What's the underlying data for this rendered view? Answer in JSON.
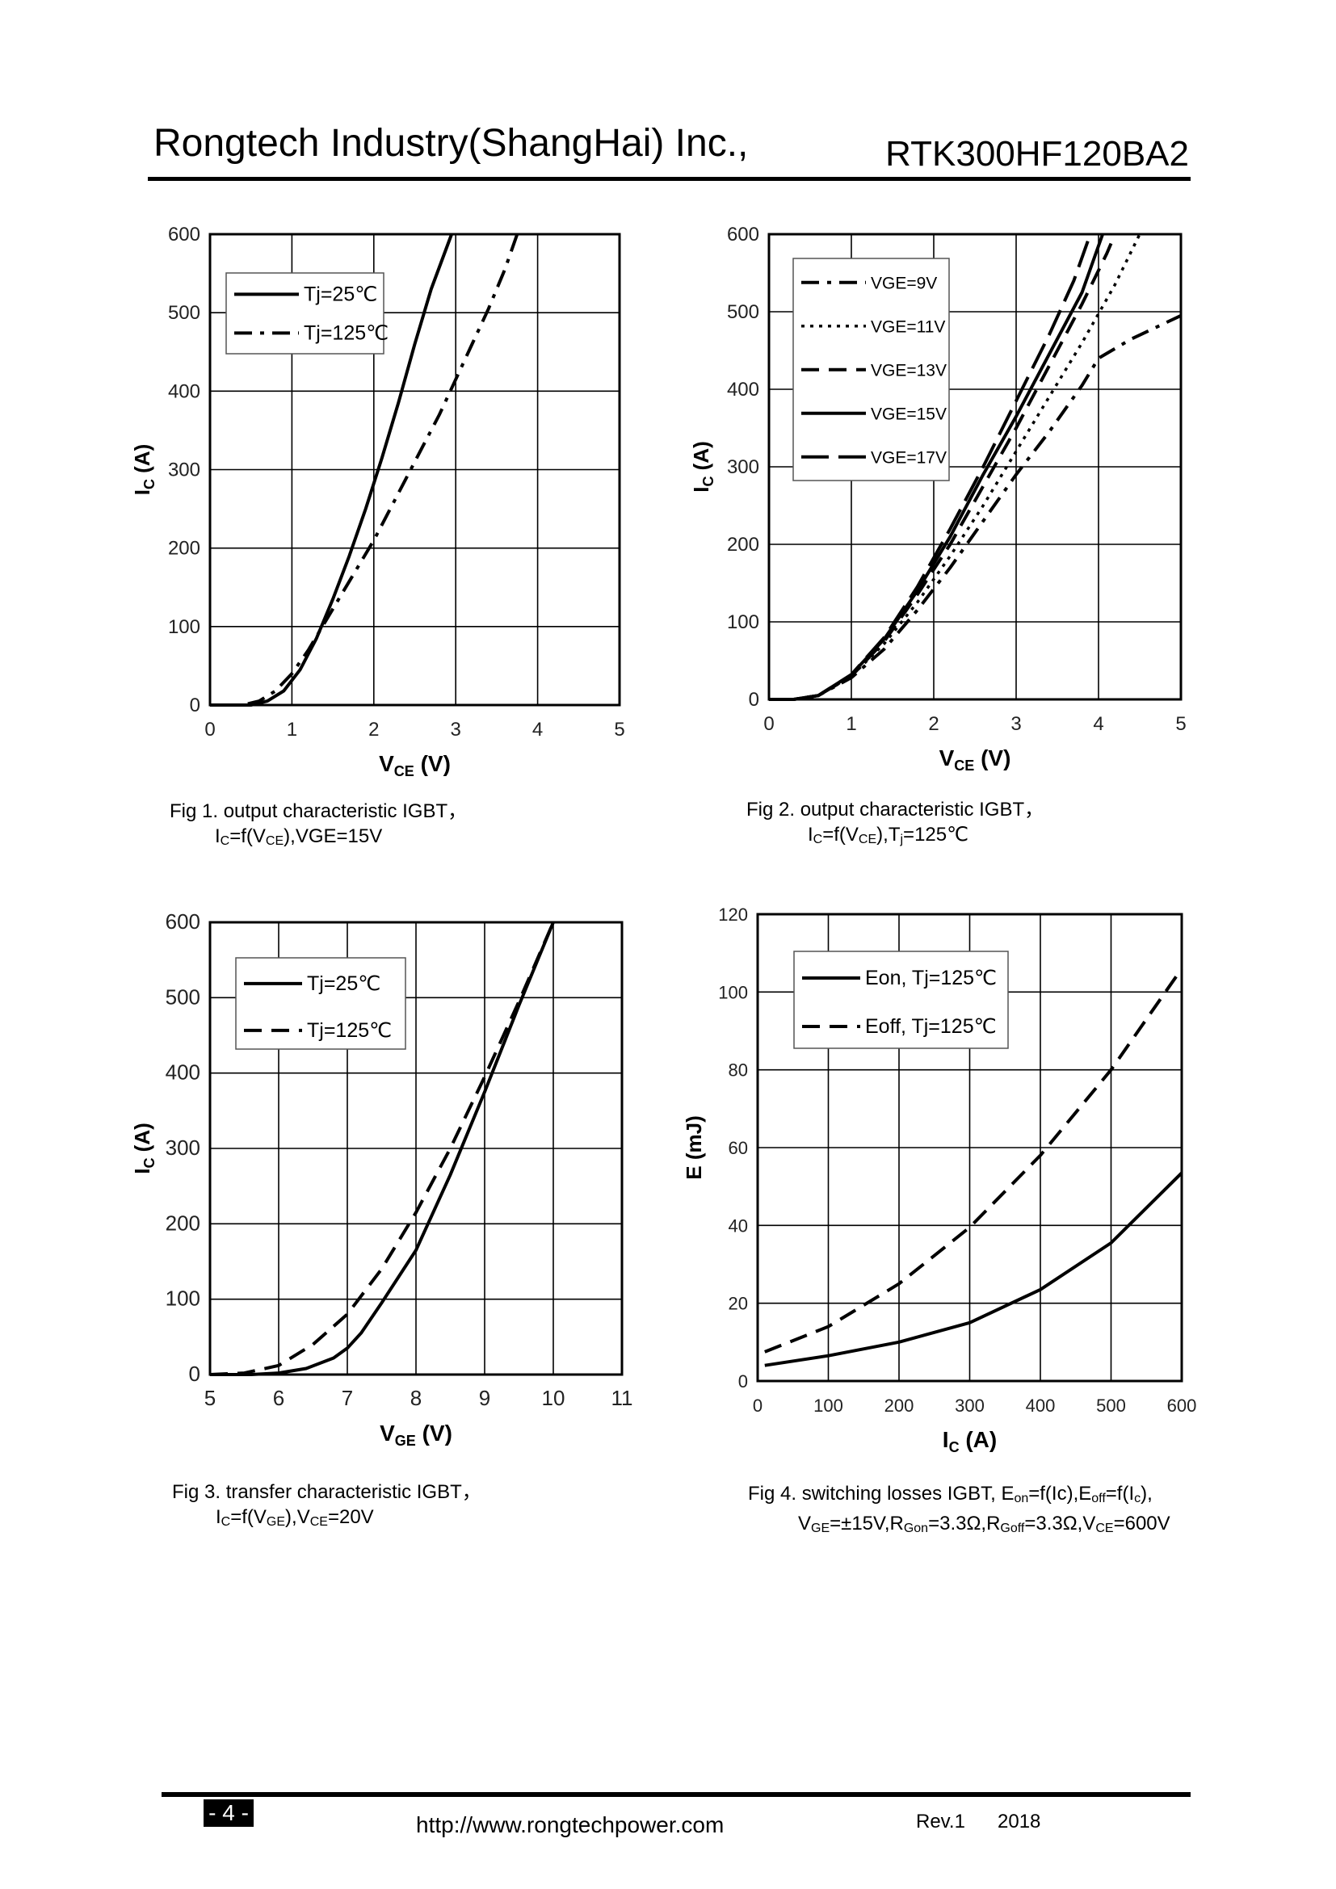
{
  "header": {
    "company": "Rongtech Industry(ShangHai) Inc.,",
    "part_number": "RTK300HF120BA2"
  },
  "captions": {
    "fig1": {
      "line1": "Fig 1. output characteristic IGBT，",
      "ic_sym": "I",
      "ic_sub": "C",
      "eq": "=f(V",
      "vce_sub": "CE",
      "rest": "),VGE=15V"
    },
    "fig2": {
      "line1": "Fig 2. output characteristic IGBT，",
      "ic_sym": "I",
      "ic_sub": "C",
      "eq": "=f(V",
      "vce_sub": "CE",
      "rest": "),T",
      "tj_sub": "j",
      "rest2": "=125℃"
    },
    "fig3": {
      "line1": "Fig 3. transfer characteristic IGBT，",
      "ic_sym": "I",
      "ic_sub": "C",
      "eq": "=f(V",
      "vge_sub": "GE",
      "rest": "),V",
      "vce_sub": "CE",
      "rest2": "=20V"
    },
    "fig4": {
      "l1a": "Fig 4. switching losses IGBT, E",
      "l1s1": "on",
      "l1b": "=f(Ic),E",
      "l1s2": "off",
      "l1c": "=f(I",
      "l1s3": "c",
      "l1d": "),",
      "l2a": "V",
      "l2s1": "GE",
      "l2b": "=±15V,R",
      "l2s2": "Gon",
      "l2c": "=3.3Ω,R",
      "l2s3": "Goff",
      "l2d": "=3.3Ω,V",
      "l2s4": "CE",
      "l2e": "=600V"
    }
  },
  "footer": {
    "page": "- 4 -",
    "url": "http://www.rongtechpower.com",
    "rev": "Rev.1",
    "year": "2018"
  },
  "chart_data": [
    {
      "id": "fig1",
      "type": "line",
      "title": "",
      "xlabel": "V",
      "xlabel_sub": "CE",
      "xlabel_unit": " (V)",
      "ylabel": "I",
      "ylabel_sub": "C",
      "ylabel_unit": " (A)",
      "xlim": [
        0,
        5
      ],
      "ylim": [
        0,
        600
      ],
      "xticks": [
        "0",
        "1",
        "2",
        "3",
        "4",
        "5"
      ],
      "yticks": [
        "0",
        "100",
        "200",
        "300",
        "400",
        "500",
        "600"
      ],
      "grid": true,
      "legend_position": "top-left",
      "series": [
        {
          "name": "Tj=25℃",
          "style": "solid",
          "points": [
            [
              0,
              0
            ],
            [
              0.5,
              0
            ],
            [
              0.7,
              5
            ],
            [
              0.9,
              18
            ],
            [
              1.1,
              45
            ],
            [
              1.3,
              85
            ],
            [
              1.5,
              135
            ],
            [
              1.7,
              190
            ],
            [
              1.9,
              250
            ],
            [
              2.1,
              315
            ],
            [
              2.3,
              385
            ],
            [
              2.5,
              460
            ],
            [
              2.7,
              530
            ],
            [
              2.95,
              600
            ]
          ]
        },
        {
          "name": "Tj=125℃",
          "style": "dashdot",
          "points": [
            [
              0,
              0
            ],
            [
              0.4,
              0
            ],
            [
              0.6,
              5
            ],
            [
              0.8,
              18
            ],
            [
              1.0,
              40
            ],
            [
              1.2,
              70
            ],
            [
              1.4,
              105
            ],
            [
              1.6,
              140
            ],
            [
              1.8,
              175
            ],
            [
              2.0,
              210
            ],
            [
              2.2,
              250
            ],
            [
              2.4,
              290
            ],
            [
              2.6,
              330
            ],
            [
              2.8,
              370
            ],
            [
              3.0,
              415
            ],
            [
              3.2,
              460
            ],
            [
              3.4,
              505
            ],
            [
              3.6,
              555
            ],
            [
              3.75,
              600
            ]
          ]
        }
      ]
    },
    {
      "id": "fig2",
      "type": "line",
      "title": "",
      "xlabel": "V",
      "xlabel_sub": "CE",
      "xlabel_unit": " (V)",
      "ylabel": "I",
      "ylabel_sub": "C",
      "ylabel_unit": " (A)",
      "xlim": [
        0,
        5
      ],
      "ylim": [
        0,
        600
      ],
      "xticks": [
        "0",
        "1",
        "2",
        "3",
        "4",
        "5"
      ],
      "yticks": [
        "0",
        "100",
        "200",
        "300",
        "400",
        "500",
        "600"
      ],
      "grid": true,
      "legend_position": "top-left",
      "series": [
        {
          "name": "VGE=9V",
          "style": "dashdot",
          "points": [
            [
              0,
              0
            ],
            [
              0.3,
              0
            ],
            [
              0.6,
              5
            ],
            [
              1.0,
              28
            ],
            [
              1.4,
              65
            ],
            [
              1.8,
              115
            ],
            [
              2.2,
              170
            ],
            [
              2.6,
              230
            ],
            [
              3.0,
              290
            ],
            [
              3.4,
              345
            ],
            [
              3.8,
              405
            ],
            [
              4.0,
              440
            ],
            [
              4.4,
              465
            ],
            [
              4.8,
              485
            ],
            [
              5.0,
              495
            ]
          ]
        },
        {
          "name": "VGE=11V",
          "style": "dotted",
          "points": [
            [
              0,
              0
            ],
            [
              0.3,
              0
            ],
            [
              0.6,
              5
            ],
            [
              1.0,
              30
            ],
            [
              1.4,
              72
            ],
            [
              1.8,
              125
            ],
            [
              2.2,
              185
            ],
            [
              2.6,
              250
            ],
            [
              3.0,
              320
            ],
            [
              3.4,
              390
            ],
            [
              3.8,
              460
            ],
            [
              4.2,
              535
            ],
            [
              4.5,
              600
            ]
          ]
        },
        {
          "name": "VGE=13V",
          "style": "dashed",
          "points": [
            [
              0,
              0
            ],
            [
              0.3,
              0
            ],
            [
              0.6,
              5
            ],
            [
              1.0,
              30
            ],
            [
              1.4,
              75
            ],
            [
              1.8,
              135
            ],
            [
              2.2,
              200
            ],
            [
              2.6,
              275
            ],
            [
              3.0,
              350
            ],
            [
              3.4,
              430
            ],
            [
              3.8,
              510
            ],
            [
              4.1,
              575
            ],
            [
              4.2,
              600
            ]
          ]
        },
        {
          "name": "VGE=15V",
          "style": "solid",
          "points": [
            [
              0,
              0
            ],
            [
              0.3,
              0
            ],
            [
              0.6,
              5
            ],
            [
              1.0,
              32
            ],
            [
              1.4,
              78
            ],
            [
              1.8,
              140
            ],
            [
              2.2,
              210
            ],
            [
              2.6,
              290
            ],
            [
              3.0,
              365
            ],
            [
              3.4,
              445
            ],
            [
              3.8,
              525
            ],
            [
              4.05,
              600
            ]
          ]
        },
        {
          "name": "VGE=17V",
          "style": "longdash",
          "points": [
            [
              0,
              0
            ],
            [
              0.3,
              0
            ],
            [
              0.6,
              5
            ],
            [
              1.0,
              32
            ],
            [
              1.4,
              80
            ],
            [
              1.8,
              145
            ],
            [
              2.2,
              220
            ],
            [
              2.6,
              300
            ],
            [
              3.0,
              385
            ],
            [
              3.4,
              470
            ],
            [
              3.7,
              540
            ],
            [
              3.9,
              600
            ]
          ]
        }
      ]
    },
    {
      "id": "fig3",
      "type": "line",
      "title": "",
      "xlabel": "V",
      "xlabel_sub": "GE",
      "xlabel_unit": " (V)",
      "ylabel": "I",
      "ylabel_sub": "C",
      "ylabel_unit": " (A)",
      "xlim": [
        5,
        11
      ],
      "ylim": [
        0,
        600
      ],
      "xticks": [
        "5",
        "6",
        "7",
        "8",
        "9",
        "10",
        "11"
      ],
      "yticks": [
        "0",
        "100",
        "200",
        "300",
        "400",
        "500",
        "600"
      ],
      "grid": true,
      "legend_position": "top-left",
      "series": [
        {
          "name": "Tj=25℃",
          "style": "solid",
          "points": [
            [
              5,
              0
            ],
            [
              5.6,
              0
            ],
            [
              6.0,
              2
            ],
            [
              6.4,
              8
            ],
            [
              6.8,
              22
            ],
            [
              7.0,
              35
            ],
            [
              7.2,
              55
            ],
            [
              7.5,
              95
            ],
            [
              8.0,
              165
            ],
            [
              8.5,
              265
            ],
            [
              9.0,
              375
            ],
            [
              9.5,
              490
            ],
            [
              10.0,
              600
            ]
          ]
        },
        {
          "name": "Tj=125℃",
          "style": "dashed",
          "points": [
            [
              5,
              0
            ],
            [
              5.5,
              2
            ],
            [
              6.0,
              12
            ],
            [
              6.5,
              40
            ],
            [
              7.0,
              80
            ],
            [
              7.5,
              140
            ],
            [
              8.0,
              215
            ],
            [
              8.5,
              300
            ],
            [
              9.0,
              395
            ],
            [
              9.5,
              495
            ],
            [
              10.0,
              600
            ]
          ]
        }
      ]
    },
    {
      "id": "fig4",
      "type": "line",
      "title": "",
      "xlabel": "I",
      "xlabel_sub": "C",
      "xlabel_unit": " (A)",
      "ylabel": "E (mJ)",
      "ylabel_sub": "",
      "ylabel_unit": "",
      "xlim": [
        0,
        600
      ],
      "ylim": [
        0,
        120
      ],
      "xticks": [
        "0",
        "100",
        "200",
        "300",
        "400",
        "500",
        "600"
      ],
      "yticks": [
        "0",
        "20",
        "40",
        "60",
        "80",
        "100",
        "120"
      ],
      "grid": true,
      "legend_position": "top-right",
      "series": [
        {
          "name": "Eon, Tj=125℃",
          "style": "solid",
          "points": [
            [
              10,
              4
            ],
            [
              100,
              6.5
            ],
            [
              200,
              10
            ],
            [
              300,
              15
            ],
            [
              400,
              23.5
            ],
            [
              500,
              35.5
            ],
            [
              600,
              53.5
            ]
          ]
        },
        {
          "name": "Eoff, Tj=125℃",
          "style": "dashed",
          "points": [
            [
              10,
              7.5
            ],
            [
              100,
              14
            ],
            [
              200,
              25
            ],
            [
              300,
              39.5
            ],
            [
              400,
              58
            ],
            [
              500,
              80
            ],
            [
              600,
              106
            ]
          ]
        }
      ]
    }
  ]
}
